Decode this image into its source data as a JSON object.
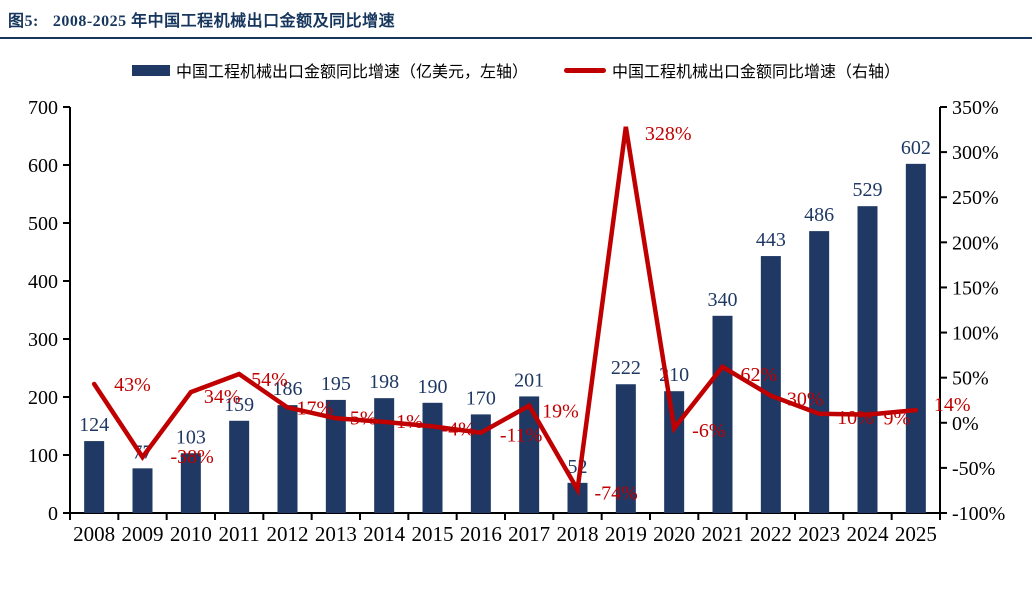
{
  "header": {
    "figure_label": "图5:",
    "title": "2008-2025 年中国工程机械出口金额及同比增速"
  },
  "legend": {
    "bar_label": "中国工程机械出口金额同比增速（亿美元，左轴）",
    "line_label": "中国工程机械出口金额同比增速（右轴）"
  },
  "colors": {
    "bar": "#1F3864",
    "line": "#C00000",
    "title_text": "#17365D",
    "value_label": "#1F3864",
    "axis_text": "#000000",
    "background": "#FFFFFF"
  },
  "chart_data": {
    "type": "bar+line",
    "title": "2008-2025 年中国工程机械出口金额及同比增速",
    "categories": [
      "2008",
      "2009",
      "2010",
      "2011",
      "2012",
      "2013",
      "2014",
      "2015",
      "2016",
      "2017",
      "2018",
      "2019",
      "2020",
      "2021",
      "2022",
      "2023",
      "2024",
      "2025"
    ],
    "series": [
      {
        "name": "中国工程机械出口金额同比增速（亿美元，左轴）",
        "type": "bar",
        "axis": "left",
        "unit": "亿美元",
        "values": [
          124,
          77,
          103,
          159,
          186,
          195,
          198,
          190,
          170,
          201,
          52,
          222,
          210,
          340,
          443,
          486,
          529,
          602
        ],
        "labels": [
          "124",
          "77",
          "103",
          "159",
          "186",
          "195",
          "198",
          "190",
          "170",
          "201",
          "52",
          "222",
          "210",
          "340",
          "443",
          "486",
          "529",
          "602"
        ]
      },
      {
        "name": "中国工程机械出口金额同比增速（右轴）",
        "type": "line",
        "axis": "right",
        "unit": "%",
        "values": [
          43,
          -38,
          34,
          54,
          17,
          5,
          1,
          -4,
          -11,
          19,
          -74,
          328,
          -6,
          62,
          30,
          10,
          9,
          14
        ],
        "labels": [
          "43%",
          "-38%",
          "34%",
          "54%",
          "17%",
          "5%",
          "1%",
          "-4%",
          "-11%",
          "19%",
          "-74%",
          "328%",
          "-6%",
          "62%",
          "30%",
          "10%",
          "9%",
          "14%"
        ]
      }
    ],
    "left_axis": {
      "min": 0,
      "max": 700,
      "step": 100,
      "tick_labels": [
        "0",
        "100",
        "200",
        "300",
        "400",
        "500",
        "600",
        "700"
      ]
    },
    "right_axis": {
      "min": -100,
      "max": 350,
      "step": 50,
      "tick_labels": [
        "-100%",
        "-50%",
        "0%",
        "50%",
        "100%",
        "150%",
        "200%",
        "250%",
        "300%",
        "350%"
      ]
    },
    "grid": false,
    "legend_position": "top"
  }
}
